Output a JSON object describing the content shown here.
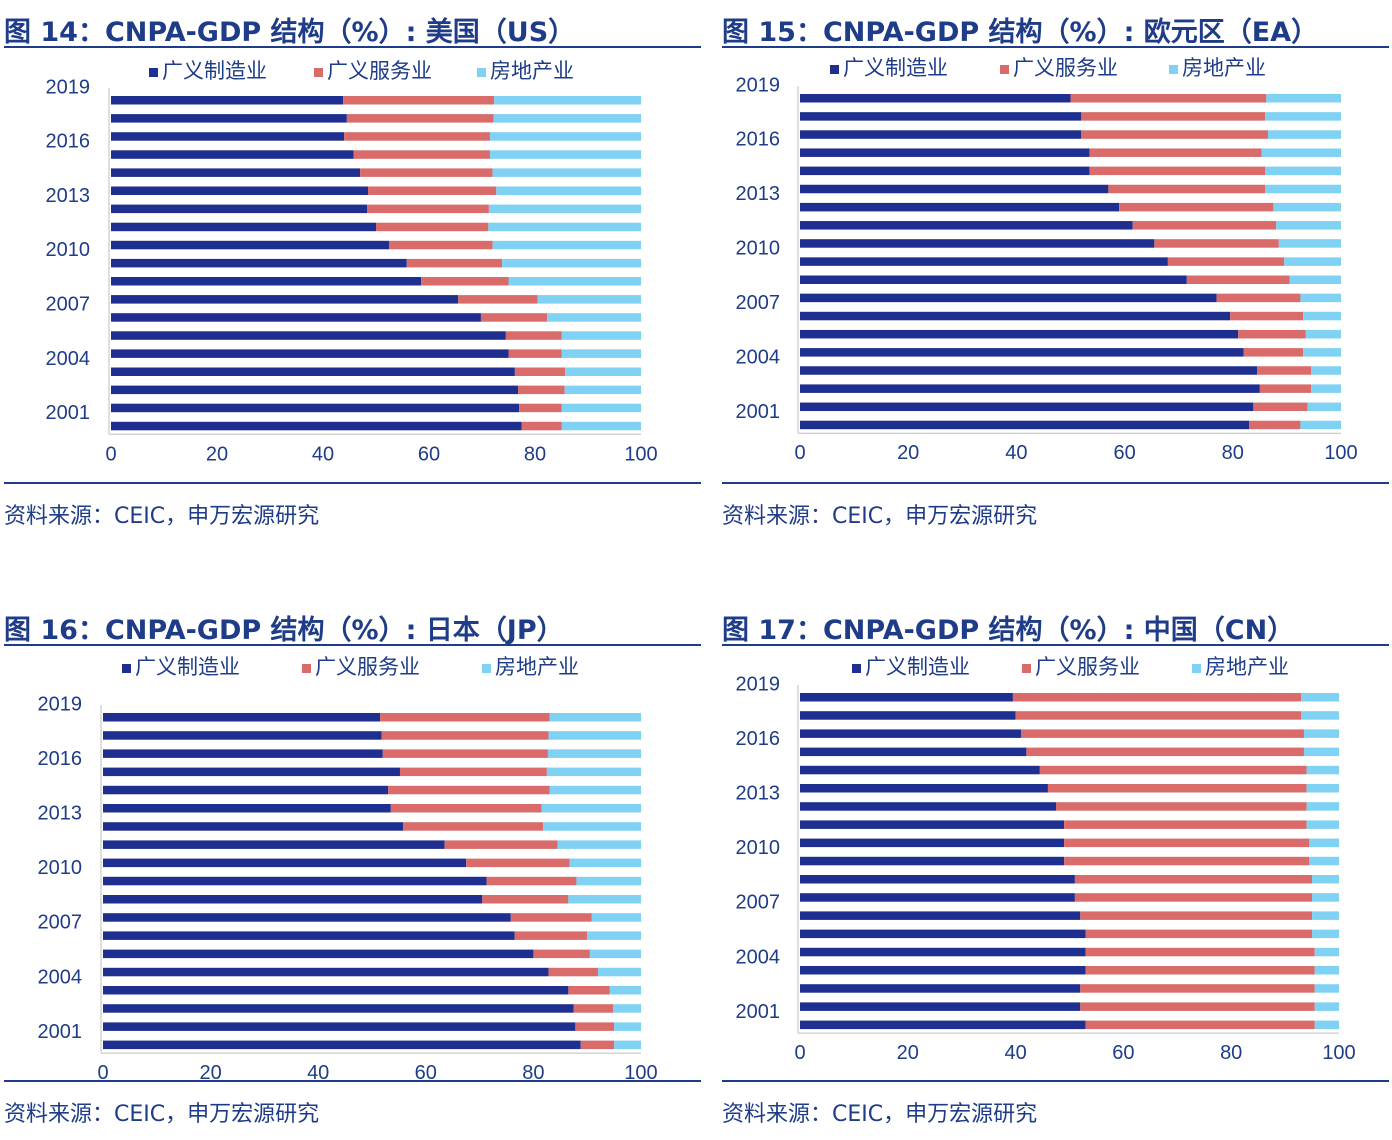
{
  "colors": {
    "manufacturing": "#1f2f8f",
    "services": "#d96b6b",
    "realestate": "#7fd2f3",
    "title": "#1f3c88",
    "axis": "#bfbfbf"
  },
  "legend": [
    "广义制造业",
    "广义服务业",
    "房地产业"
  ],
  "source": "资料来源：CEIC，申万宏源研究",
  "chart_data": [
    {
      "id": "us",
      "type": "bar",
      "title": "图 14：CNPA-GDP 结构（%）: 美国（US）",
      "stacked": true,
      "orientation": "horizontal",
      "categories": [
        "2001",
        "2002",
        "2003",
        "2004",
        "2005",
        "2006",
        "2007",
        "2008",
        "2009",
        "2010",
        "2011",
        "2012",
        "2013",
        "2014",
        "2015",
        "2016",
        "2017",
        "2018",
        "2019"
      ],
      "category_ticks": [
        "2001",
        "2004",
        "2007",
        "2010",
        "2013",
        "2016",
        "2019"
      ],
      "x_ticks": [
        "0",
        "20",
        "40",
        "60",
        "80",
        "100"
      ],
      "xlim": [
        0,
        100
      ],
      "series": [
        {
          "name": "广义制造业",
          "values": [
            77.5,
            77.0,
            76.8,
            76.2,
            75.0,
            74.5,
            69.8,
            65.5,
            58.5,
            55.8,
            52.5,
            50.0,
            48.3,
            48.5,
            47.0,
            45.8,
            44.0,
            44.5,
            43.8
          ]
        },
        {
          "name": "广义服务业",
          "values": [
            7.5,
            8.0,
            8.8,
            9.5,
            10.0,
            10.5,
            12.5,
            15.0,
            16.5,
            18.0,
            19.5,
            21.2,
            23.0,
            24.2,
            25.0,
            25.7,
            27.5,
            27.7,
            28.5
          ]
        },
        {
          "name": "房地产业",
          "values": [
            15.0,
            15.0,
            14.4,
            14.3,
            15.0,
            15.0,
            17.7,
            19.5,
            25.0,
            26.2,
            28.0,
            28.8,
            28.7,
            27.3,
            28.0,
            28.5,
            28.5,
            27.8,
            27.7
          ]
        }
      ],
      "legend_position": "top"
    },
    {
      "id": "ea",
      "type": "bar",
      "title": "图 15：CNPA-GDP 结构（%）: 欧元区（EA）",
      "stacked": true,
      "orientation": "horizontal",
      "categories": [
        "2001",
        "2002",
        "2003",
        "2004",
        "2005",
        "2006",
        "2007",
        "2008",
        "2009",
        "2010",
        "2011",
        "2012",
        "2013",
        "2014",
        "2015",
        "2016",
        "2017",
        "2018",
        "2019"
      ],
      "category_ticks": [
        "2001",
        "2004",
        "2007",
        "2010",
        "2013",
        "2016",
        "2019"
      ],
      "x_ticks": [
        "0",
        "20",
        "40",
        "60",
        "80",
        "100"
      ],
      "xlim": [
        0,
        100
      ],
      "series": [
        {
          "name": "广义制造业",
          "values": [
            83.0,
            83.8,
            85.0,
            84.5,
            82.0,
            81.0,
            79.5,
            77.0,
            71.5,
            68.0,
            65.5,
            61.5,
            59.0,
            57.0,
            53.5,
            53.5,
            52.0,
            52.0,
            50.0
          ]
        },
        {
          "name": "广义服务业",
          "values": [
            9.5,
            10.0,
            9.5,
            10.0,
            11.0,
            12.5,
            13.5,
            15.5,
            19.0,
            21.5,
            23.0,
            26.5,
            28.5,
            29.0,
            32.5,
            31.8,
            34.5,
            34.0,
            36.2
          ]
        },
        {
          "name": "房地产业",
          "values": [
            7.5,
            6.2,
            5.5,
            5.5,
            7.0,
            6.5,
            7.0,
            7.5,
            9.5,
            10.5,
            11.5,
            12.0,
            12.5,
            14.0,
            14.0,
            14.7,
            13.5,
            14.0,
            13.8
          ]
        }
      ],
      "legend_position": "top"
    },
    {
      "id": "jp",
      "type": "bar",
      "title": "图 16：CNPA-GDP 结构（%）: 日本（JP）",
      "stacked": true,
      "orientation": "horizontal",
      "categories": [
        "2001",
        "2002",
        "2003",
        "2004",
        "2005",
        "2006",
        "2007",
        "2008",
        "2009",
        "2010",
        "2011",
        "2012",
        "2013",
        "2014",
        "2015",
        "2016",
        "2017",
        "2018",
        "2019"
      ],
      "category_ticks": [
        "2001",
        "2004",
        "2007",
        "2010",
        "2013",
        "2016",
        "2019"
      ],
      "x_ticks": [
        "0",
        "20",
        "40",
        "60",
        "80",
        "100"
      ],
      "xlim": [
        0,
        100
      ],
      "series": [
        {
          "name": "广义制造业",
          "values": [
            88.8,
            87.8,
            87.5,
            86.5,
            82.8,
            80.0,
            76.5,
            75.8,
            70.5,
            71.3,
            67.5,
            63.5,
            55.8,
            53.5,
            53.0,
            55.2,
            52.0,
            51.8,
            51.5
          ]
        },
        {
          "name": "广义服务业",
          "values": [
            6.2,
            7.2,
            7.3,
            7.7,
            9.2,
            10.5,
            13.5,
            15.0,
            16.0,
            16.7,
            19.2,
            21.0,
            26.0,
            28.0,
            30.0,
            27.3,
            30.7,
            31.0,
            31.5
          ]
        },
        {
          "name": "房地产业",
          "values": [
            5.0,
            5.0,
            5.2,
            5.8,
            8.0,
            9.5,
            10.0,
            9.2,
            13.5,
            12.0,
            13.3,
            15.5,
            18.2,
            18.5,
            17.0,
            17.5,
            17.3,
            17.2,
            17.0
          ]
        }
      ],
      "legend_position": "top"
    },
    {
      "id": "cn",
      "type": "bar",
      "title": "图 17：CNPA-GDP 结构（%）: 中国（CN）",
      "stacked": true,
      "orientation": "horizontal",
      "categories": [
        "2001",
        "2002",
        "2003",
        "2004",
        "2005",
        "2006",
        "2007",
        "2008",
        "2009",
        "2010",
        "2011",
        "2012",
        "2013",
        "2014",
        "2015",
        "2016",
        "2017",
        "2018",
        "2019"
      ],
      "category_ticks": [
        "2001",
        "2004",
        "2007",
        "2010",
        "2013",
        "2016",
        "2019"
      ],
      "x_ticks": [
        "0",
        "20",
        "40",
        "60",
        "80",
        "100"
      ],
      "xlim": [
        0,
        100
      ],
      "series": [
        {
          "name": "广义制造业",
          "values": [
            53.0,
            52.0,
            52.0,
            53.0,
            53.0,
            53.0,
            52.0,
            51.0,
            51.0,
            49.0,
            49.0,
            49.0,
            47.5,
            46.0,
            44.5,
            42.0,
            41.0,
            40.0,
            39.5
          ]
        },
        {
          "name": "广义服务业",
          "values": [
            42.5,
            43.5,
            43.5,
            42.5,
            42.5,
            42.0,
            43.0,
            44.0,
            44.0,
            45.5,
            45.5,
            45.0,
            46.5,
            48.0,
            49.5,
            51.5,
            52.5,
            53.0,
            53.5
          ]
        },
        {
          "name": "房地产业",
          "values": [
            4.5,
            4.5,
            4.5,
            4.5,
            4.5,
            5.0,
            5.0,
            5.0,
            5.0,
            5.5,
            5.5,
            6.0,
            6.0,
            6.0,
            6.0,
            6.5,
            6.5,
            7.0,
            7.0
          ]
        }
      ],
      "legend_position": "top"
    }
  ]
}
